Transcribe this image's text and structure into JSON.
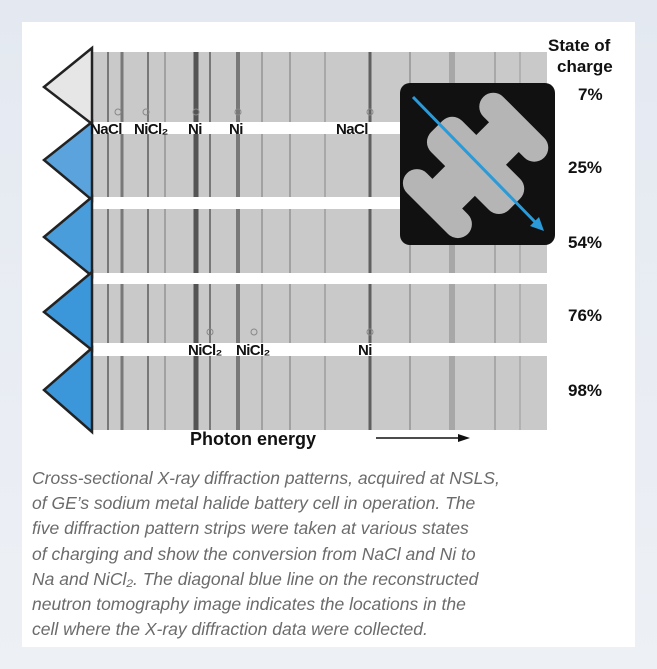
{
  "figure": {
    "state_header": [
      "State of",
      "charge"
    ],
    "states": [
      "7%",
      "25%",
      "54%",
      "76%",
      "98%"
    ],
    "top_peaks": [
      "NaCl",
      "NiCl₂",
      "Ni",
      "Ni",
      "NaCl"
    ],
    "bottom_peaks": [
      "NiCl₂",
      "NiCl₂",
      "Ni"
    ],
    "x_label": "Photon energy"
  },
  "caption": {
    "lines": [
      "Cross-sectional X-ray diffraction patterns, acquired at NSLS,",
      "of GE’s sodium metal halide battery cell in operation. The",
      "five diffraction pattern strips were taken at various states",
      "of charging and show the conversion from NaCl and Ni to",
      "Na and NiCl₂. The diagonal blue line on the reconstructed",
      "neutron tomography image indicates the locations in the",
      "cell where the X-ray diffraction data were collected."
    ]
  }
}
